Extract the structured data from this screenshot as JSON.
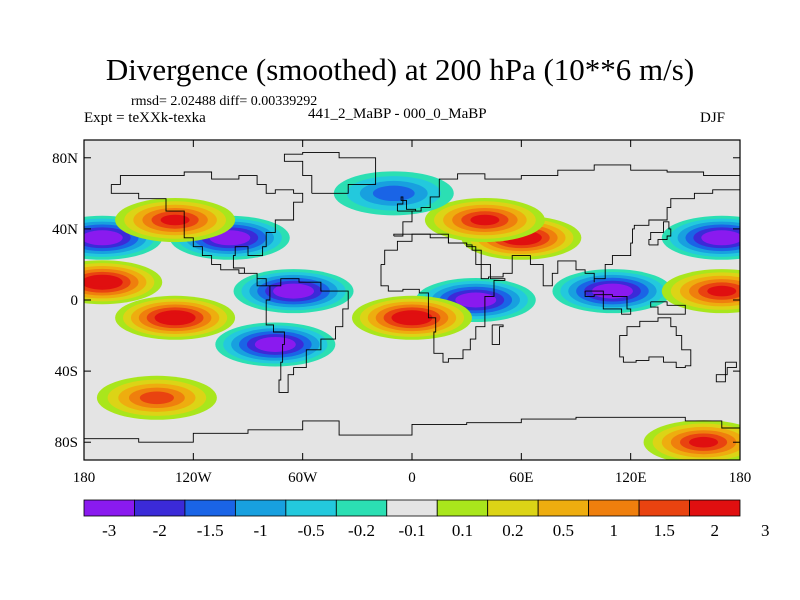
{
  "title": "Divergence (smoothed) at 200 hPa (10**6 m/s)",
  "stats_line": "rmsd= 2.02488 diff= 0.00339292",
  "expt_line": "Expt = teXXk-texka",
  "experiment_label": "441_2_MaBP - 000_0_MaBP",
  "season_label": "DJF",
  "chart_data": {
    "type": "heatmap",
    "projection": "cylindrical-equidistant",
    "variable": "200 hPa divergence (smoothed)",
    "units": "10**6 m/s",
    "lon_range": [
      -180,
      180
    ],
    "lat_range": [
      -90,
      90
    ],
    "x_ticks": [
      {
        "value": -180,
        "label": "180"
      },
      {
        "value": -120,
        "label": "120W"
      },
      {
        "value": -60,
        "label": "60W"
      },
      {
        "value": 0,
        "label": "0"
      },
      {
        "value": 60,
        "label": "60E"
      },
      {
        "value": 120,
        "label": "120E"
      },
      {
        "value": 180,
        "label": "180"
      }
    ],
    "y_ticks": [
      {
        "value": 80,
        "label": "80N"
      },
      {
        "value": 40,
        "label": "40N"
      },
      {
        "value": 0,
        "label": "0"
      },
      {
        "value": -40,
        "label": "40S"
      },
      {
        "value": -80,
        "label": "80S"
      }
    ],
    "colorbar": {
      "colors": [
        "#8a1aef",
        "#3b2ad8",
        "#1a64e6",
        "#18a0df",
        "#23c9dd",
        "#2bdfb3",
        "#e4e4e4",
        "#a9e61c",
        "#dcd416",
        "#eead0f",
        "#ef7f0d",
        "#e94310",
        "#e00f10"
      ],
      "boundaries": [
        "-3",
        "-2",
        "-1.5",
        "-1",
        "-0.5",
        "-0.2",
        "-0.1",
        "0.1",
        "0.2",
        "0.5",
        "1",
        "1.5",
        "2",
        "3"
      ],
      "shown_labels": [
        "-3",
        "-2",
        "-1.5",
        "-1",
        "-0.5",
        "-0.2",
        "-0.1",
        "0.1",
        "0.2",
        "0.5",
        "1",
        "1.5",
        "2",
        "3"
      ]
    },
    "field_features": [
      {
        "lon": -170,
        "lat": 35,
        "value": -3
      },
      {
        "lon": -100,
        "lat": 35,
        "value": -3
      },
      {
        "lon": -65,
        "lat": 5,
        "value": -3
      },
      {
        "lon": -75,
        "lat": -25,
        "value": -3
      },
      {
        "lon": 35,
        "lat": 0,
        "value": -3
      },
      {
        "lon": 110,
        "lat": 5,
        "value": -3
      },
      {
        "lon": 170,
        "lat": 35,
        "value": -3
      },
      {
        "lon": 60,
        "lat": 35,
        "value": 3
      },
      {
        "lon": -130,
        "lat": -10,
        "value": 3
      },
      {
        "lon": 0,
        "lat": -10,
        "value": 3
      },
      {
        "lon": -170,
        "lat": 10,
        "value": 3
      },
      {
        "lon": -130,
        "lat": 45,
        "value": 2
      },
      {
        "lon": 40,
        "lat": 45,
        "value": 2
      },
      {
        "lon": 170,
        "lat": 5,
        "value": 2
      },
      {
        "lon": -10,
        "lat": 60,
        "value": -1
      },
      {
        "lon": -140,
        "lat": -55,
        "value": 1.5
      },
      {
        "lon": 160,
        "lat": -80,
        "value": 2
      }
    ]
  }
}
